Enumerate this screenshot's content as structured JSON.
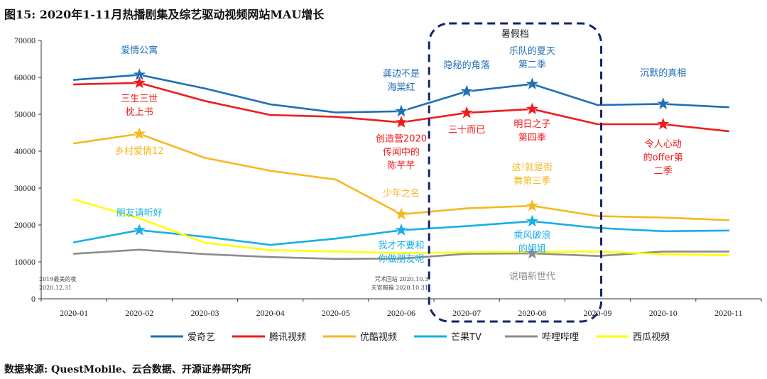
{
  "header": {
    "title": "图15:  2020年1-11月热播剧集及综艺驱动视频网站MAU增长"
  },
  "footer": {
    "source": "数据来源:  QuestMobile、云合数据、开源证券研究所"
  },
  "chart_data": {
    "type": "line",
    "title": "图15:  2020年1-11月热播剧集及综艺驱动视频网站MAU增长",
    "categories": [
      "2020-01",
      "2020-02",
      "2020-03",
      "2020-04",
      "2020-05",
      "2020-06",
      "2020-07",
      "2020-08",
      "2020-09",
      "2020-10",
      "2020-11"
    ],
    "ylim": [
      0,
      70000
    ],
    "yticks": [
      0,
      10000,
      20000,
      30000,
      40000,
      50000,
      60000,
      70000
    ],
    "grid": false,
    "legend_position": "bottom",
    "series": [
      {
        "name": "爱奇艺",
        "color": "#1f6fb5",
        "values": [
          59300,
          60700,
          57000,
          52700,
          50500,
          50800,
          56200,
          58200,
          52500,
          52800,
          51900
        ]
      },
      {
        "name": "腾讯视频",
        "color": "#ee1c1c",
        "values": [
          58100,
          58500,
          53600,
          49800,
          49300,
          47800,
          50400,
          51400,
          47300,
          47300,
          45400
        ]
      },
      {
        "name": "优酷视频",
        "color": "#f5b81f",
        "values": [
          42100,
          44700,
          38200,
          34700,
          32300,
          22900,
          24500,
          25200,
          22400,
          22000,
          21300
        ]
      },
      {
        "name": "芒果TV",
        "color": "#19aee8",
        "values": [
          15300,
          18600,
          16800,
          14600,
          16300,
          18600,
          19700,
          21000,
          19200,
          18300,
          18500
        ]
      },
      {
        "name": "哔哩哔哩",
        "color": "#8c8c8c",
        "values": [
          12200,
          13300,
          12100,
          11300,
          10800,
          10900,
          12200,
          12300,
          11600,
          12800,
          12800
        ]
      },
      {
        "name": "西瓜视频",
        "color": "#ffff00",
        "values": [
          26900,
          21800,
          15200,
          13200,
          12800,
          12400,
          12600,
          12700,
          12800,
          12100,
          11800
        ]
      }
    ],
    "stars": [
      {
        "series": 0,
        "index": 1
      },
      {
        "series": 0,
        "index": 5
      },
      {
        "series": 0,
        "index": 6
      },
      {
        "series": 0,
        "index": 7
      },
      {
        "series": 0,
        "index": 9
      },
      {
        "series": 1,
        "index": 1
      },
      {
        "series": 1,
        "index": 5
      },
      {
        "series": 1,
        "index": 6
      },
      {
        "series": 1,
        "index": 7
      },
      {
        "series": 1,
        "index": 9
      },
      {
        "series": 2,
        "index": 1
      },
      {
        "series": 2,
        "index": 5
      },
      {
        "series": 2,
        "index": 7
      },
      {
        "series": 3,
        "index": 1
      },
      {
        "series": 3,
        "index": 5
      },
      {
        "series": 3,
        "index": 7
      },
      {
        "series": 4,
        "index": 7
      }
    ],
    "highlight": {
      "label": "暑假档",
      "from": "2020-07",
      "to": "2020-09"
    },
    "annotations": [
      {
        "lines": [
          "爱情公寓"
        ],
        "color": "#1f6fb5",
        "x": "2020-02",
        "y": 66500
      },
      {
        "lines": [
          "龚边不是",
          "海棠红"
        ],
        "color": "#1f6fb5",
        "x": "2020-06",
        "y": 60200
      },
      {
        "lines": [
          "隐秘的角落"
        ],
        "color": "#1f6fb5",
        "x": "2020-07",
        "y": 62500
      },
      {
        "lines": [
          "乐队的夏天",
          "第二季"
        ],
        "color": "#1f6fb5",
        "x": "2020-08",
        "y": 66300
      },
      {
        "lines": [
          "沉默的真相"
        ],
        "color": "#1f6fb5",
        "x": "2020-10",
        "y": 60400
      },
      {
        "lines": [
          "三生三世",
          "枕上书"
        ],
        "color": "#ee1c1c",
        "x": "2020-02",
        "y": 53500
      },
      {
        "lines": [
          "创造营2020",
          "传闻中的",
          "陈芊芊"
        ],
        "color": "#ee1c1c",
        "x": "2020-06",
        "y": 42600
      },
      {
        "lines": [
          "三十而已"
        ],
        "color": "#ee1c1c",
        "x": "2020-07",
        "y": 45000
      },
      {
        "lines": [
          "明日之子",
          "第四季"
        ],
        "color": "#ee1c1c",
        "x": "2020-08",
        "y": 46500
      },
      {
        "lines": [
          "令人心动",
          "的offer第",
          "二季"
        ],
        "color": "#ee1c1c",
        "x": "2020-10",
        "y": 41200
      },
      {
        "lines": [
          "乡村爱情12"
        ],
        "color": "#f5b81f",
        "x": "2020-02",
        "y": 39200
      },
      {
        "lines": [
          "少年之名"
        ],
        "color": "#f5b81f",
        "x": "2020-06",
        "y": 27800
      },
      {
        "lines": [
          "这!就是街",
          "舞第三季"
        ],
        "color": "#f5b81f",
        "x": "2020-08",
        "y": 34800
      },
      {
        "lines": [
          "朋友请听好"
        ],
        "color": "#19aee8",
        "x": "2020-02",
        "y": 22500
      },
      {
        "lines": [
          "我才不要和",
          "你做朋友呢"
        ],
        "color": "#19aee8",
        "x": "2020-06",
        "y": 13700
      },
      {
        "lines": [
          "乘风破浪",
          "的姐姐"
        ],
        "color": "#19aee8",
        "x": "2020-08",
        "y": 16400
      },
      {
        "lines": [
          "说唱新世代"
        ],
        "color": "#8c8c8c",
        "x": "2020-08",
        "y": 5300
      }
    ],
    "notes": [
      {
        "lines": [
          "2019最美的夜",
          "2020.12.31"
        ],
        "x": "2020-01",
        "anchor": "left"
      },
      {
        "lines": [
          "咒术回站   2020.10.3",
          "天官赐福   2020.10.31"
        ],
        "x": "2020-06",
        "anchor": "right"
      }
    ]
  }
}
